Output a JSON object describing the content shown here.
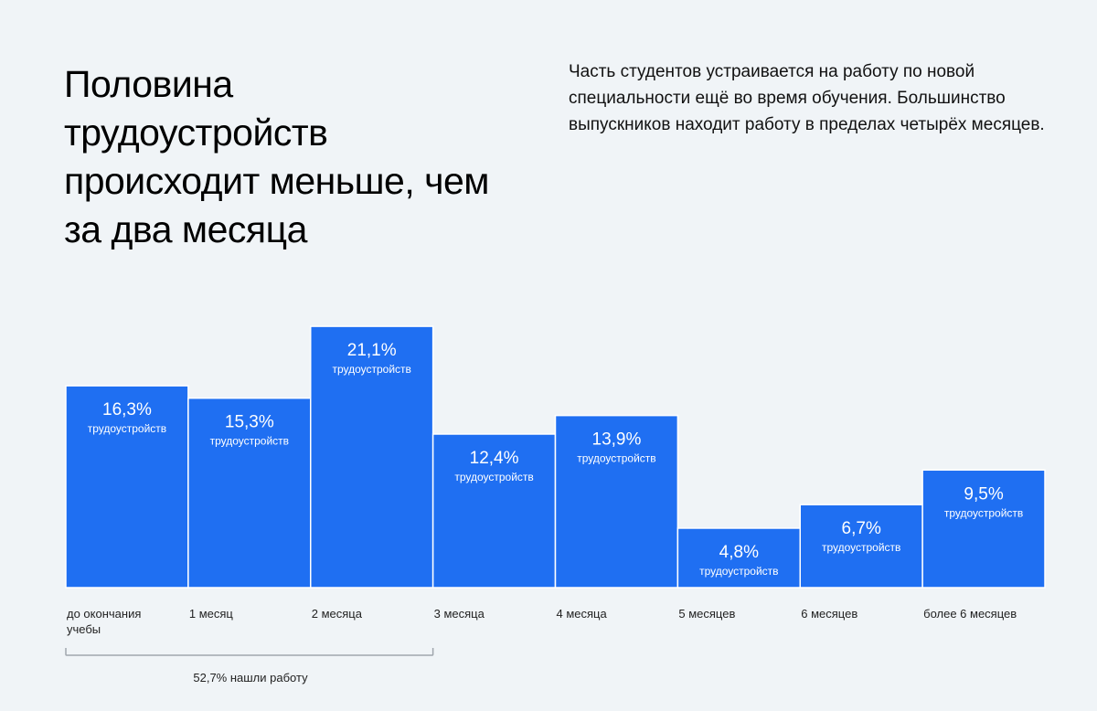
{
  "header": {
    "title": "Половина трудоустройств происходит меньше, чем за два месяца",
    "description": "Часть студентов устраивается на работу по новой специальности ещё во время обучения. Большинство выпускников находит работу в пределах четырёх месяцев."
  },
  "chart_data": {
    "type": "bar",
    "categories": [
      "до окончания учебы",
      "1 месяц",
      "2 месяца",
      "3 месяца",
      "4 месяца",
      "5 месяцев",
      "6 месяцев",
      "более  6 месяцев"
    ],
    "values": [
      16.3,
      15.3,
      21.1,
      12.4,
      13.9,
      4.8,
      6.7,
      9.5
    ],
    "value_labels": [
      "16,3%",
      "15,3%",
      "21,1%",
      "12,4%",
      "13,9%",
      "4,8%",
      "6,7%",
      "9,5%"
    ],
    "bar_unit_label": "трудоустройств",
    "bar_color": "#1f6ff2",
    "annotation": {
      "label": "52,7% нашли работу",
      "spans_categories": [
        "до окончания учебы",
        "1 месяц",
        "2 месяца"
      ]
    }
  }
}
